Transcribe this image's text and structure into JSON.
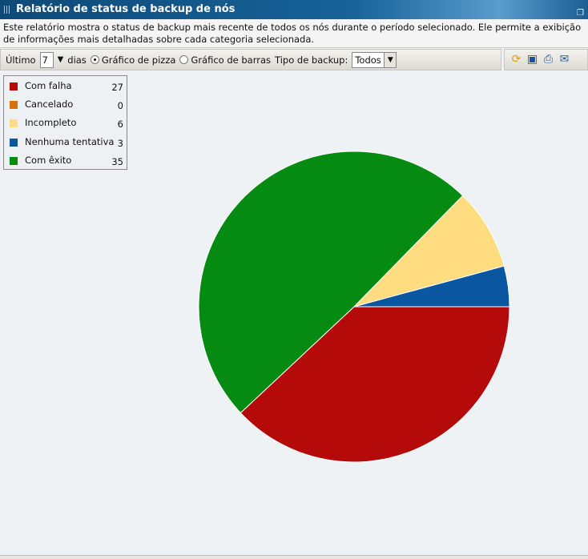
{
  "title": "Relatório de status de backup de nós",
  "description": "Este relatório mostra o status de backup mais recente de todos os nós durante o período selecionado. Ele permite a exibição de informações mais detalhadas sobre cada categoria selecionada.",
  "toolbar": {
    "last_label": "Último",
    "days_value": "7",
    "days_label": "dias",
    "pie_label": "Gráfico de pizza",
    "bar_label": "Gráfico de barras",
    "selected_chart": "pie",
    "backup_type_label": "Tipo de backup:",
    "backup_type_value": "Todos",
    "icons": [
      "refresh-icon",
      "save-icon",
      "print-icon",
      "email-icon"
    ]
  },
  "chart_data": {
    "type": "pie",
    "categories": [
      "Com falha",
      "Cancelado",
      "Incompleto",
      "Nenhuma tentativa",
      "Com êxito"
    ],
    "values": [
      27,
      0,
      6,
      3,
      35
    ],
    "colors": [
      "#b50a0a",
      "#d9700a",
      "#ffdc7f",
      "#0a56a0",
      "#058a12"
    ],
    "legend_placement": "top-left"
  }
}
